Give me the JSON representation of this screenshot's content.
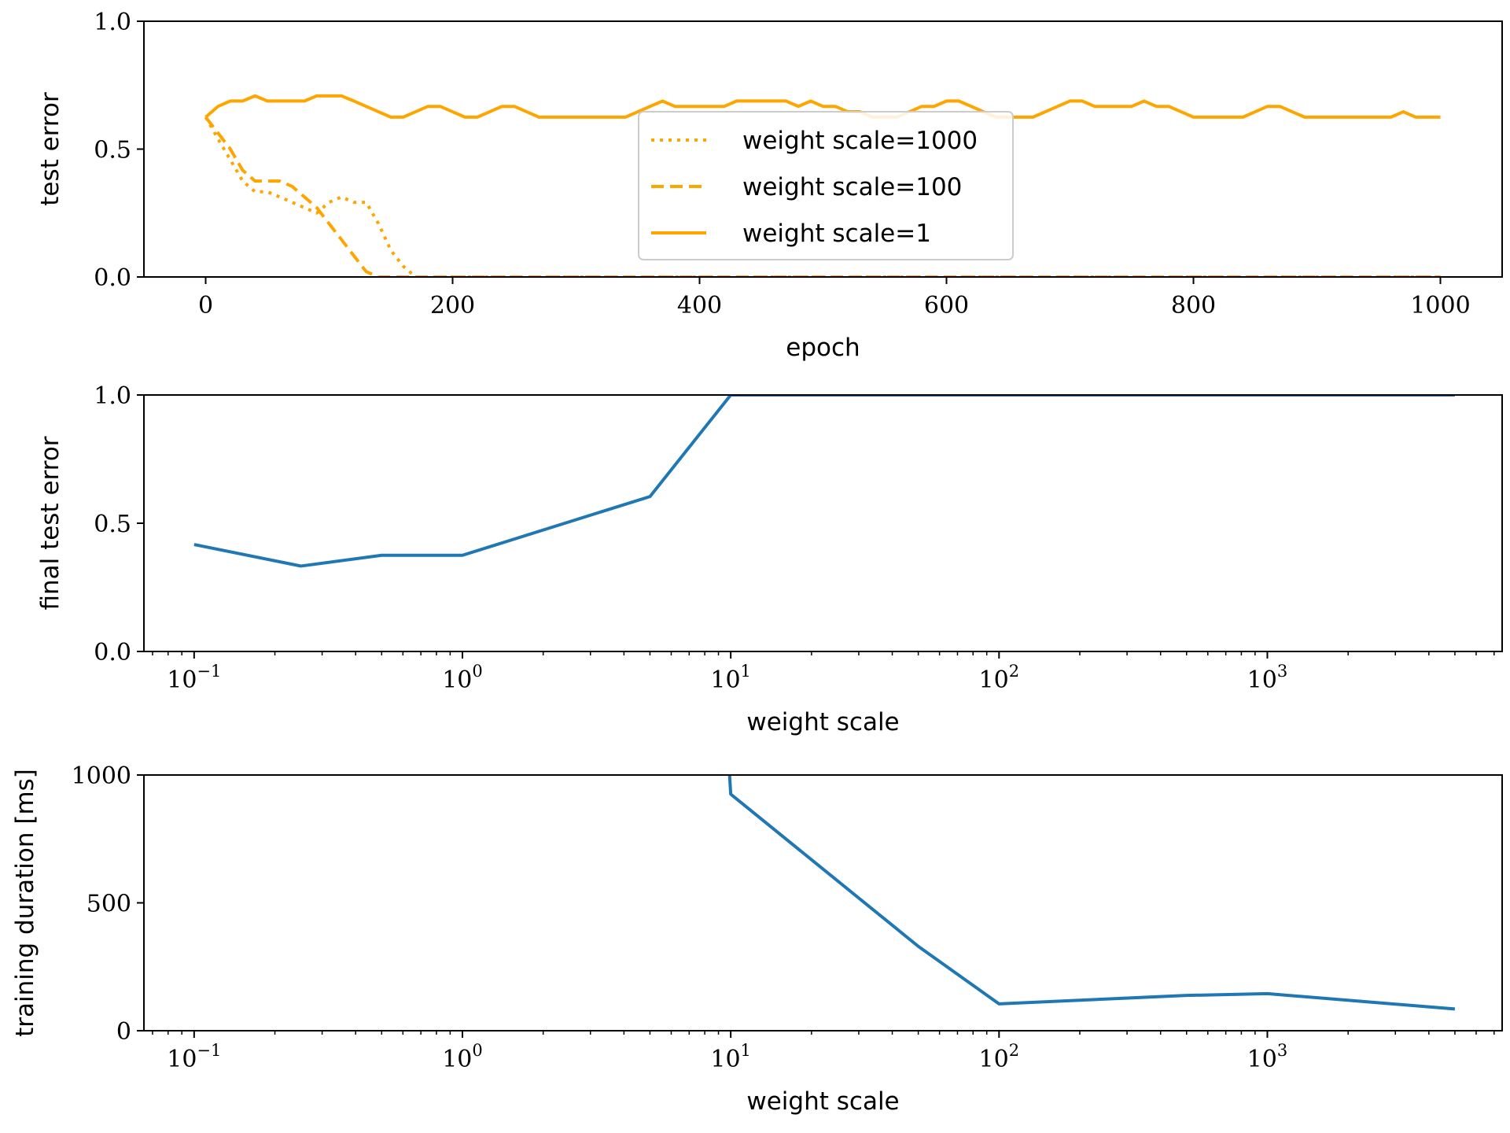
{
  "chart_data": [
    {
      "type": "line",
      "xlabel": "epoch",
      "ylabel": "test error",
      "xlim": [
        -50,
        1050
      ],
      "ylim": [
        0,
        1
      ],
      "xticks": [
        0,
        200,
        400,
        600,
        800,
        1000
      ],
      "xtick_labels": [
        "0",
        "200",
        "400",
        "600",
        "800",
        "1000"
      ],
      "yticks": [
        0,
        0.5,
        1
      ],
      "ytick_labels": [
        "0.0",
        "0.5",
        "1.0"
      ],
      "legend_position": "center",
      "series": [
        {
          "name": "weight scale=1000",
          "style": "dotted",
          "color": "#ffa500",
          "x": [
            0,
            10,
            20,
            30,
            40,
            50,
            60,
            70,
            80,
            90,
            100,
            110,
            120,
            130,
            140,
            150,
            160,
            170,
            180,
            1000
          ],
          "y": [
            0.625,
            0.54,
            0.458,
            0.375,
            0.333,
            0.333,
            0.313,
            0.292,
            0.271,
            0.25,
            0.292,
            0.313,
            0.292,
            0.292,
            0.208,
            0.104,
            0.042,
            0.0,
            0.0,
            0.0
          ]
        },
        {
          "name": "weight scale=100",
          "style": "dashed",
          "color": "#ffa500",
          "x": [
            0,
            10,
            20,
            30,
            40,
            50,
            60,
            70,
            80,
            90,
            100,
            110,
            120,
            130,
            140,
            1000
          ],
          "y": [
            0.625,
            0.563,
            0.5,
            0.417,
            0.375,
            0.375,
            0.375,
            0.354,
            0.313,
            0.271,
            0.208,
            0.146,
            0.083,
            0.021,
            0.0,
            0.0
          ]
        },
        {
          "name": "weight scale=1",
          "style": "solid",
          "color": "#ffa500",
          "x": [
            0,
            10,
            20,
            30,
            40,
            50,
            60,
            70,
            80,
            90,
            100,
            110,
            120,
            130,
            140,
            150,
            160,
            170,
            180,
            190,
            200,
            210,
            220,
            230,
            240,
            250,
            260,
            270,
            280,
            290,
            300,
            310,
            320,
            330,
            340,
            350,
            360,
            370,
            380,
            390,
            400,
            410,
            420,
            430,
            440,
            450,
            460,
            470,
            480,
            490,
            500,
            510,
            520,
            530,
            540,
            550,
            560,
            570,
            580,
            590,
            600,
            610,
            620,
            630,
            640,
            650,
            660,
            670,
            680,
            690,
            700,
            710,
            720,
            730,
            740,
            750,
            760,
            770,
            780,
            790,
            800,
            810,
            820,
            830,
            840,
            850,
            860,
            870,
            880,
            890,
            900,
            910,
            920,
            930,
            940,
            950,
            960,
            970,
            980,
            990,
            1000
          ],
          "y": [
            0.625,
            0.667,
            0.688,
            0.688,
            0.708,
            0.688,
            0.688,
            0.688,
            0.688,
            0.708,
            0.708,
            0.708,
            0.688,
            0.667,
            0.646,
            0.625,
            0.625,
            0.646,
            0.667,
            0.667,
            0.646,
            0.625,
            0.625,
            0.646,
            0.667,
            0.667,
            0.646,
            0.625,
            0.625,
            0.625,
            0.625,
            0.625,
            0.625,
            0.625,
            0.625,
            0.646,
            0.667,
            0.688,
            0.667,
            0.667,
            0.667,
            0.667,
            0.667,
            0.688,
            0.688,
            0.688,
            0.688,
            0.688,
            0.667,
            0.688,
            0.667,
            0.667,
            0.646,
            0.646,
            0.625,
            0.625,
            0.625,
            0.646,
            0.667,
            0.667,
            0.688,
            0.688,
            0.667,
            0.646,
            0.625,
            0.625,
            0.625,
            0.625,
            0.646,
            0.667,
            0.688,
            0.688,
            0.667,
            0.667,
            0.667,
            0.667,
            0.688,
            0.667,
            0.667,
            0.646,
            0.625,
            0.625,
            0.625,
            0.625,
            0.625,
            0.646,
            0.667,
            0.667,
            0.646,
            0.625,
            0.625,
            0.625,
            0.625,
            0.625,
            0.625,
            0.625,
            0.625,
            0.646,
            0.625,
            0.625,
            0.625
          ]
        }
      ]
    },
    {
      "type": "line",
      "xscale": "log",
      "xlabel": "weight scale",
      "ylabel": "final test error",
      "xlim": [
        0.065,
        7500
      ],
      "ylim": [
        0,
        1
      ],
      "xticks": [
        0.1,
        1,
        10,
        100,
        1000
      ],
      "xtick_labels": [
        "10−1",
        "100",
        "101",
        "102",
        "103"
      ],
      "yticks": [
        0,
        0.5,
        1
      ],
      "ytick_labels": [
        "0.0",
        "0.5",
        "1.0"
      ],
      "series": [
        {
          "color": "#1f77b4",
          "x": [
            0.1,
            0.25,
            0.5,
            1,
            5,
            10,
            50,
            100,
            500,
            1000,
            5000
          ],
          "y": [
            0.417,
            0.333,
            0.375,
            0.375,
            0.604,
            1.0,
            1.0,
            1.0,
            1.0,
            1.0,
            1.0
          ]
        }
      ]
    },
    {
      "type": "line",
      "xscale": "log",
      "xlabel": "weight scale",
      "ylabel": "training duration [ms]",
      "xlim": [
        0.065,
        7500
      ],
      "ylim": [
        0,
        1000
      ],
      "xticks": [
        0.1,
        1,
        10,
        100,
        1000
      ],
      "xtick_labels": [
        "10−1",
        "100",
        "101",
        "102",
        "103"
      ],
      "yticks": [
        0,
        500,
        1000
      ],
      "ytick_labels": [
        "0",
        "500",
        "1000"
      ],
      "series": [
        {
          "color": "#1f77b4",
          "x": [
            9.9,
            10,
            50,
            100,
            500,
            1000,
            5000
          ],
          "y": [
            1000,
            925,
            330,
            105,
            138,
            145,
            85
          ]
        }
      ]
    }
  ]
}
